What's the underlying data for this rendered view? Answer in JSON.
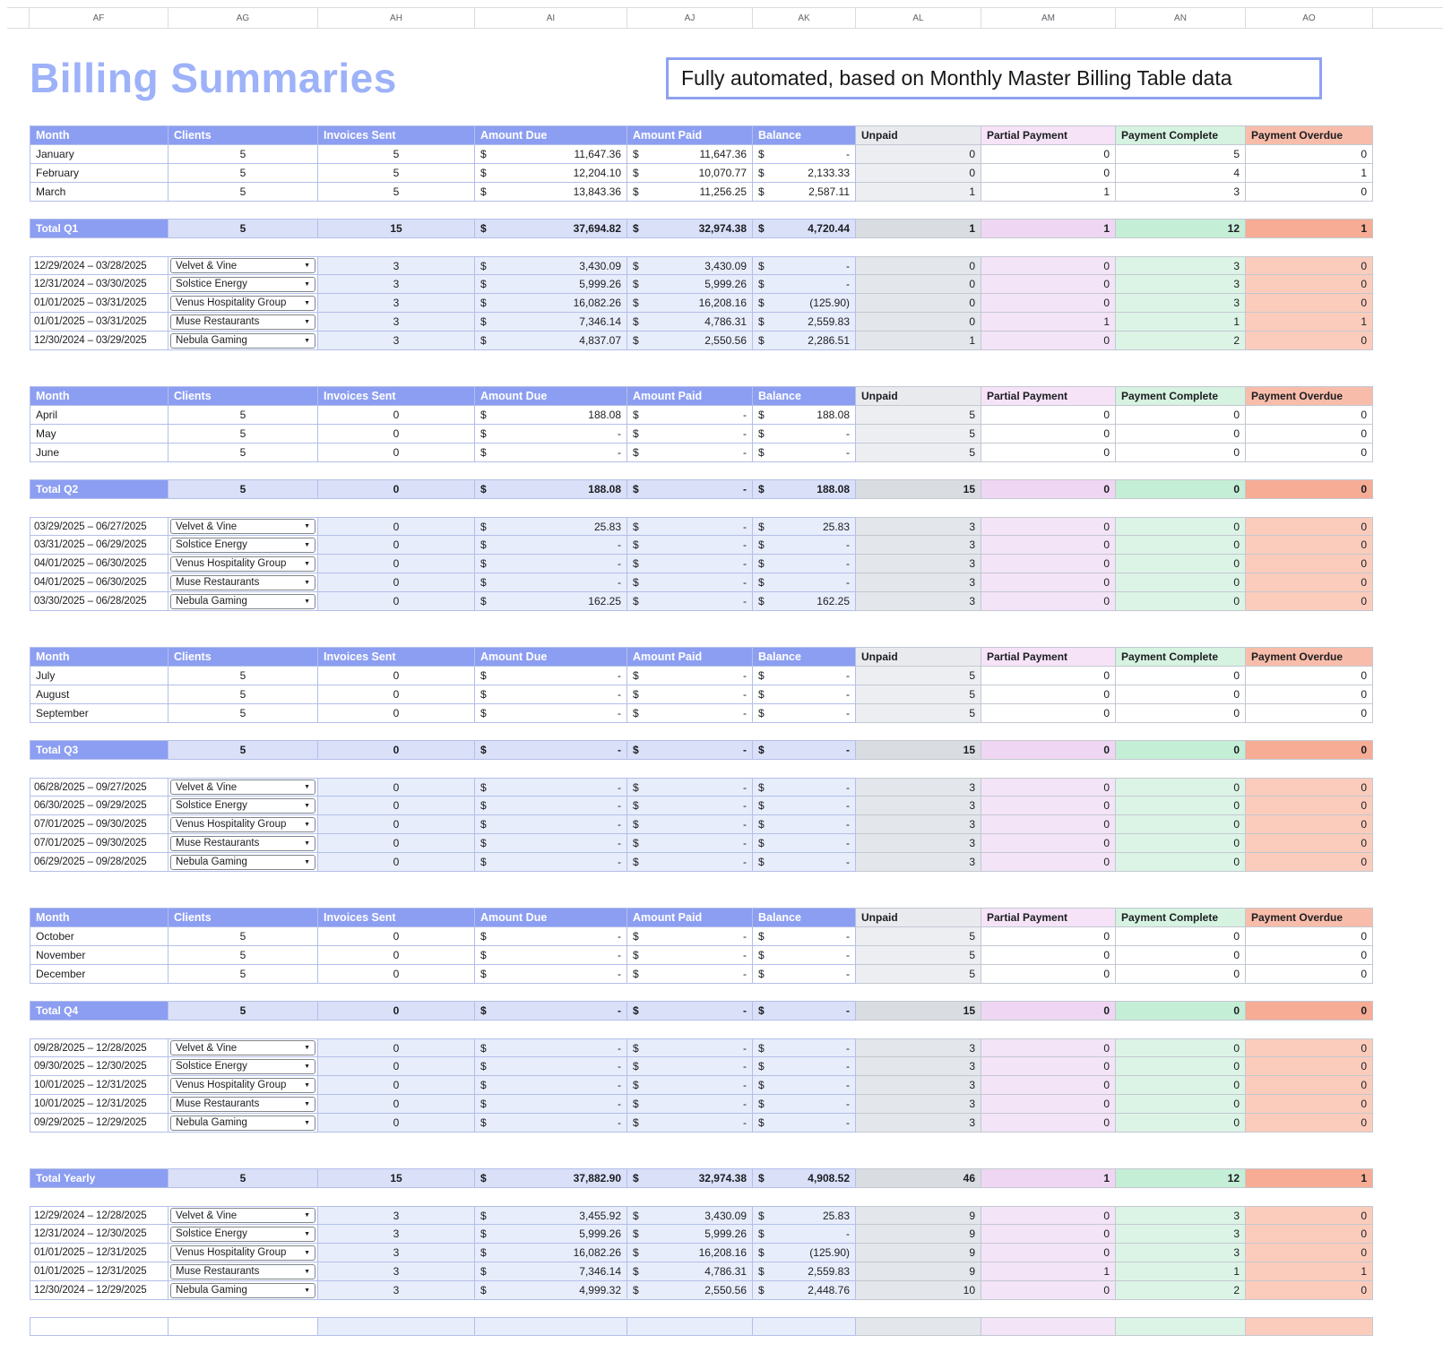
{
  "meta": {
    "title": "Billing Summaries",
    "note": "Fully automated, based on Monthly Master Billing Table data",
    "currency": "$",
    "column_letters": [
      "AF",
      "AG",
      "AH",
      "AI",
      "AJ",
      "AK",
      "AL",
      "AM",
      "AN",
      "AO"
    ],
    "icons": {
      "dropdown_caret": "▼"
    }
  },
  "theme": {
    "header_blue": "#8c9ef1",
    "title": "#9db2f8",
    "note_border": "#8ea1f2",
    "blue_tint": "#e8edfb",
    "blue_total": "#d9e0f8",
    "unpaid_header": "#e8eaee",
    "unpaid_month": "#eceef2",
    "unpaid_client": "#e3e6ea",
    "unpaid_total": "#d9dde2",
    "partial_header": "#f6e3f8",
    "partial_client": "#f4e4f7",
    "partial_total": "#efd7f3",
    "complete_header": "#d6f2e0",
    "complete_client": "#dcf4e6",
    "complete_total": "#c5eed7",
    "overdue_header": "#f8bdaa",
    "overdue_client": "#fbccbc",
    "overdue_total": "#f7ac95"
  },
  "headers": [
    "Month",
    "Clients",
    "Invoices Sent",
    "Amount Due",
    "Amount Paid",
    "Balance",
    "Unpaid",
    "Partial Payment",
    "Payment Complete",
    "Payment Overdue"
  ],
  "sections": [
    {
      "id": "q1",
      "show_header": true,
      "months": [
        {
          "label": "January",
          "clients": "5",
          "invoices": "5",
          "due": "11,647.36",
          "paid": "11,647.36",
          "balance": "-",
          "unpaid": "0",
          "partial": "0",
          "complete": "5",
          "overdue": "0"
        },
        {
          "label": "February",
          "clients": "5",
          "invoices": "5",
          "due": "12,204.10",
          "paid": "10,070.77",
          "balance": "2,133.33",
          "unpaid": "0",
          "partial": "0",
          "complete": "4",
          "overdue": "1"
        },
        {
          "label": "March",
          "clients": "5",
          "invoices": "5",
          "due": "13,843.36",
          "paid": "11,256.25",
          "balance": "2,587.11",
          "unpaid": "1",
          "partial": "1",
          "complete": "3",
          "overdue": "0"
        }
      ],
      "total": {
        "label": "Total Q1",
        "clients": "5",
        "invoices": "15",
        "due": "37,694.82",
        "paid": "32,974.38",
        "balance": "4,720.44",
        "unpaid": "1",
        "partial": "1",
        "complete": "12",
        "overdue": "1"
      },
      "clients": [
        {
          "range": "12/29/2024 – 03/28/2025",
          "name": "Velvet & Vine",
          "invoices": "3",
          "due": "3,430.09",
          "paid": "3,430.09",
          "balance": "-",
          "unpaid": "0",
          "partial": "0",
          "complete": "3",
          "overdue": "0"
        },
        {
          "range": "12/31/2024 – 03/30/2025",
          "name": "Solstice Energy",
          "invoices": "3",
          "due": "5,999.26",
          "paid": "5,999.26",
          "balance": "-",
          "unpaid": "0",
          "partial": "0",
          "complete": "3",
          "overdue": "0"
        },
        {
          "range": "01/01/2025 – 03/31/2025",
          "name": "Venus Hospitality Group",
          "invoices": "3",
          "due": "16,082.26",
          "paid": "16,208.16",
          "balance": "(125.90)",
          "unpaid": "0",
          "partial": "0",
          "complete": "3",
          "overdue": "0"
        },
        {
          "range": "01/01/2025 – 03/31/2025",
          "name": "Muse Restaurants",
          "invoices": "3",
          "due": "7,346.14",
          "paid": "4,786.31",
          "balance": "2,559.83",
          "unpaid": "0",
          "partial": "1",
          "complete": "1",
          "overdue": "1"
        },
        {
          "range": "12/30/2024 – 03/29/2025",
          "name": "Nebula Gaming",
          "invoices": "3",
          "due": "4,837.07",
          "paid": "2,550.56",
          "balance": "2,286.51",
          "unpaid": "1",
          "partial": "0",
          "complete": "2",
          "overdue": "0"
        }
      ]
    },
    {
      "id": "q2",
      "show_header": true,
      "months": [
        {
          "label": "April",
          "clients": "5",
          "invoices": "0",
          "due": "188.08",
          "paid": "-",
          "balance": "188.08",
          "unpaid": "5",
          "partial": "0",
          "complete": "0",
          "overdue": "0"
        },
        {
          "label": "May",
          "clients": "5",
          "invoices": "0",
          "due": "-",
          "paid": "-",
          "balance": "-",
          "unpaid": "5",
          "partial": "0",
          "complete": "0",
          "overdue": "0"
        },
        {
          "label": "June",
          "clients": "5",
          "invoices": "0",
          "due": "-",
          "paid": "-",
          "balance": "-",
          "unpaid": "5",
          "partial": "0",
          "complete": "0",
          "overdue": "0"
        }
      ],
      "total": {
        "label": "Total Q2",
        "clients": "5",
        "invoices": "0",
        "due": "188.08",
        "paid": "-",
        "balance": "188.08",
        "unpaid": "15",
        "partial": "0",
        "complete": "0",
        "overdue": "0"
      },
      "clients": [
        {
          "range": "03/29/2025 – 06/27/2025",
          "name": "Velvet & Vine",
          "invoices": "0",
          "due": "25.83",
          "paid": "-",
          "balance": "25.83",
          "unpaid": "3",
          "partial": "0",
          "complete": "0",
          "overdue": "0"
        },
        {
          "range": "03/31/2025 – 06/29/2025",
          "name": "Solstice Energy",
          "invoices": "0",
          "due": "-",
          "paid": "-",
          "balance": "-",
          "unpaid": "3",
          "partial": "0",
          "complete": "0",
          "overdue": "0"
        },
        {
          "range": "04/01/2025 – 06/30/2025",
          "name": "Venus Hospitality Group",
          "invoices": "0",
          "due": "-",
          "paid": "-",
          "balance": "-",
          "unpaid": "3",
          "partial": "0",
          "complete": "0",
          "overdue": "0"
        },
        {
          "range": "04/01/2025 – 06/30/2025",
          "name": "Muse Restaurants",
          "invoices": "0",
          "due": "-",
          "paid": "-",
          "balance": "-",
          "unpaid": "3",
          "partial": "0",
          "complete": "0",
          "overdue": "0"
        },
        {
          "range": "03/30/2025 – 06/28/2025",
          "name": "Nebula Gaming",
          "invoices": "0",
          "due": "162.25",
          "paid": "-",
          "balance": "162.25",
          "unpaid": "3",
          "partial": "0",
          "complete": "0",
          "overdue": "0"
        }
      ]
    },
    {
      "id": "q3",
      "show_header": true,
      "months": [
        {
          "label": "July",
          "clients": "5",
          "invoices": "0",
          "due": "-",
          "paid": "-",
          "balance": "-",
          "unpaid": "5",
          "partial": "0",
          "complete": "0",
          "overdue": "0"
        },
        {
          "label": "August",
          "clients": "5",
          "invoices": "0",
          "due": "-",
          "paid": "-",
          "balance": "-",
          "unpaid": "5",
          "partial": "0",
          "complete": "0",
          "overdue": "0"
        },
        {
          "label": "September",
          "clients": "5",
          "invoices": "0",
          "due": "-",
          "paid": "-",
          "balance": "-",
          "unpaid": "5",
          "partial": "0",
          "complete": "0",
          "overdue": "0"
        }
      ],
      "total": {
        "label": "Total Q3",
        "clients": "5",
        "invoices": "0",
        "due": "-",
        "paid": "-",
        "balance": "-",
        "unpaid": "15",
        "partial": "0",
        "complete": "0",
        "overdue": "0"
      },
      "clients": [
        {
          "range": "06/28/2025 – 09/27/2025",
          "name": "Velvet & Vine",
          "invoices": "0",
          "due": "-",
          "paid": "-",
          "balance": "-",
          "unpaid": "3",
          "partial": "0",
          "complete": "0",
          "overdue": "0"
        },
        {
          "range": "06/30/2025 – 09/29/2025",
          "name": "Solstice Energy",
          "invoices": "0",
          "due": "-",
          "paid": "-",
          "balance": "-",
          "unpaid": "3",
          "partial": "0",
          "complete": "0",
          "overdue": "0"
        },
        {
          "range": "07/01/2025 – 09/30/2025",
          "name": "Venus Hospitality Group",
          "invoices": "0",
          "due": "-",
          "paid": "-",
          "balance": "-",
          "unpaid": "3",
          "partial": "0",
          "complete": "0",
          "overdue": "0"
        },
        {
          "range": "07/01/2025 – 09/30/2025",
          "name": "Muse Restaurants",
          "invoices": "0",
          "due": "-",
          "paid": "-",
          "balance": "-",
          "unpaid": "3",
          "partial": "0",
          "complete": "0",
          "overdue": "0"
        },
        {
          "range": "06/29/2025 – 09/28/2025",
          "name": "Nebula Gaming",
          "invoices": "0",
          "due": "-",
          "paid": "-",
          "balance": "-",
          "unpaid": "3",
          "partial": "0",
          "complete": "0",
          "overdue": "0"
        }
      ]
    },
    {
      "id": "q4",
      "show_header": true,
      "months": [
        {
          "label": "October",
          "clients": "5",
          "invoices": "0",
          "due": "-",
          "paid": "-",
          "balance": "-",
          "unpaid": "5",
          "partial": "0",
          "complete": "0",
          "overdue": "0"
        },
        {
          "label": "November",
          "clients": "5",
          "invoices": "0",
          "due": "-",
          "paid": "-",
          "balance": "-",
          "unpaid": "5",
          "partial": "0",
          "complete": "0",
          "overdue": "0"
        },
        {
          "label": "December",
          "clients": "5",
          "invoices": "0",
          "due": "-",
          "paid": "-",
          "balance": "-",
          "unpaid": "5",
          "partial": "0",
          "complete": "0",
          "overdue": "0"
        }
      ],
      "total": {
        "label": "Total Q4",
        "clients": "5",
        "invoices": "0",
        "due": "-",
        "paid": "-",
        "balance": "-",
        "unpaid": "15",
        "partial": "0",
        "complete": "0",
        "overdue": "0"
      },
      "clients": [
        {
          "range": "09/28/2025 – 12/28/2025",
          "name": "Velvet & Vine",
          "invoices": "0",
          "due": "-",
          "paid": "-",
          "balance": "-",
          "unpaid": "3",
          "partial": "0",
          "complete": "0",
          "overdue": "0"
        },
        {
          "range": "09/30/2025 – 12/30/2025",
          "name": "Solstice Energy",
          "invoices": "0",
          "due": "-",
          "paid": "-",
          "balance": "-",
          "unpaid": "3",
          "partial": "0",
          "complete": "0",
          "overdue": "0"
        },
        {
          "range": "10/01/2025 – 12/31/2025",
          "name": "Venus Hospitality Group",
          "invoices": "0",
          "due": "-",
          "paid": "-",
          "balance": "-",
          "unpaid": "3",
          "partial": "0",
          "complete": "0",
          "overdue": "0"
        },
        {
          "range": "10/01/2025 – 12/31/2025",
          "name": "Muse Restaurants",
          "invoices": "0",
          "due": "-",
          "paid": "-",
          "balance": "-",
          "unpaid": "3",
          "partial": "0",
          "complete": "0",
          "overdue": "0"
        },
        {
          "range": "09/29/2025 – 12/29/2025",
          "name": "Nebula Gaming",
          "invoices": "0",
          "due": "-",
          "paid": "-",
          "balance": "-",
          "unpaid": "3",
          "partial": "0",
          "complete": "0",
          "overdue": "0"
        }
      ]
    },
    {
      "id": "yearly",
      "show_header": false,
      "months": [],
      "total": {
        "label": "Total Yearly",
        "clients": "5",
        "invoices": "15",
        "due": "37,882.90",
        "paid": "32,974.38",
        "balance": "4,908.52",
        "unpaid": "46",
        "partial": "1",
        "complete": "12",
        "overdue": "1"
      },
      "clients": [
        {
          "range": "12/29/2024 – 12/28/2025",
          "name": "Velvet & Vine",
          "invoices": "3",
          "due": "3,455.92",
          "paid": "3,430.09",
          "balance": "25.83",
          "unpaid": "9",
          "partial": "0",
          "complete": "3",
          "overdue": "0"
        },
        {
          "range": "12/31/2024 – 12/30/2025",
          "name": "Solstice Energy",
          "invoices": "3",
          "due": "5,999.26",
          "paid": "5,999.26",
          "balance": "-",
          "unpaid": "9",
          "partial": "0",
          "complete": "3",
          "overdue": "0"
        },
        {
          "range": "01/01/2025 – 12/31/2025",
          "name": "Venus Hospitality Group",
          "invoices": "3",
          "due": "16,082.26",
          "paid": "16,208.16",
          "balance": "(125.90)",
          "unpaid": "9",
          "partial": "0",
          "complete": "3",
          "overdue": "0"
        },
        {
          "range": "01/01/2025 – 12/31/2025",
          "name": "Muse Restaurants",
          "invoices": "3",
          "due": "7,346.14",
          "paid": "4,786.31",
          "balance": "2,559.83",
          "unpaid": "9",
          "partial": "1",
          "complete": "1",
          "overdue": "1"
        },
        {
          "range": "12/30/2024 – 12/29/2025",
          "name": "Nebula Gaming",
          "invoices": "3",
          "due": "4,999.32",
          "paid": "2,550.56",
          "balance": "2,448.76",
          "unpaid": "10",
          "partial": "0",
          "complete": "2",
          "overdue": "0"
        }
      ]
    }
  ]
}
